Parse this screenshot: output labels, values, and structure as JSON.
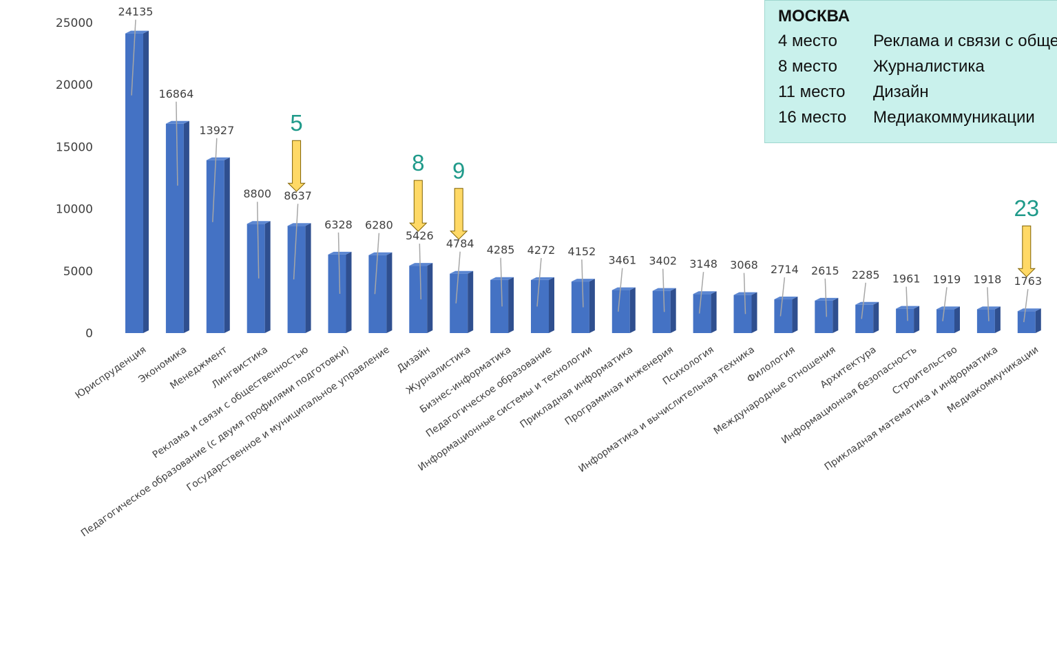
{
  "chart_data": {
    "type": "bar",
    "categories": [
      "Юриспруденция",
      "Экономика",
      "Менеджмент",
      "Лингвистика",
      "Реклама и связи с общественностью",
      "Педагогическое образование (с двумя профилями подготовки)",
      "Государственное и муниципальное управление",
      "Дизайн",
      "Журналистика",
      "Бизнес-информатика",
      "Педагогическое образование",
      "Информационные системы и технологии",
      "Прикладная информатика",
      "Программная инженерия",
      "Психология",
      "Информатика и вычислительная техника",
      "Филология",
      "Международные отношения",
      "Архитектура",
      "Информационная безопасность",
      "Строительство",
      "Прикладная математика и информатика",
      "Медиакоммуникации"
    ],
    "values": [
      24135,
      16864,
      13927,
      8800,
      8637,
      6328,
      6280,
      5426,
      4784,
      4285,
      4272,
      4152,
      3461,
      3402,
      3148,
      3068,
      2714,
      2615,
      2285,
      1961,
      1919,
      1918,
      1763
    ],
    "data_labels": [
      "24135",
      "16864",
      "13927",
      "8800",
      "8637",
      "6328",
      "6280",
      "5426",
      "4784",
      "4285",
      "4272",
      "4152",
      "3461",
      "3402",
      "3148",
      "3068",
      "2714",
      "2615",
      "2285",
      "1961",
      "1919",
      "1918",
      "1763"
    ],
    "ylim": [
      0,
      25000
    ],
    "yticks": [
      "0",
      "5000",
      "10000",
      "15000",
      "20000",
      "25000"
    ],
    "grid": false,
    "bar_color": "#4472c4",
    "markers": [
      {
        "label": "5",
        "category_index": 4
      },
      {
        "label": "8",
        "category_index": 7
      },
      {
        "label": "9",
        "category_index": 8
      },
      {
        "label": "23",
        "category_index": 22
      }
    ],
    "marker_color": "#1f9a8a",
    "arrow_color": "#ffd966"
  },
  "info_box": {
    "title": "МОСКВА",
    "rows": [
      {
        "place": "4 место",
        "name": "Реклама и связи с общественностью"
      },
      {
        "place": "8 место",
        "name": "Журналистика"
      },
      {
        "place": "11 место",
        "name": "Дизайн"
      },
      {
        "place": "16 место",
        "name": "Медиакоммуникации"
      }
    ],
    "background": "#c9f1ec"
  }
}
